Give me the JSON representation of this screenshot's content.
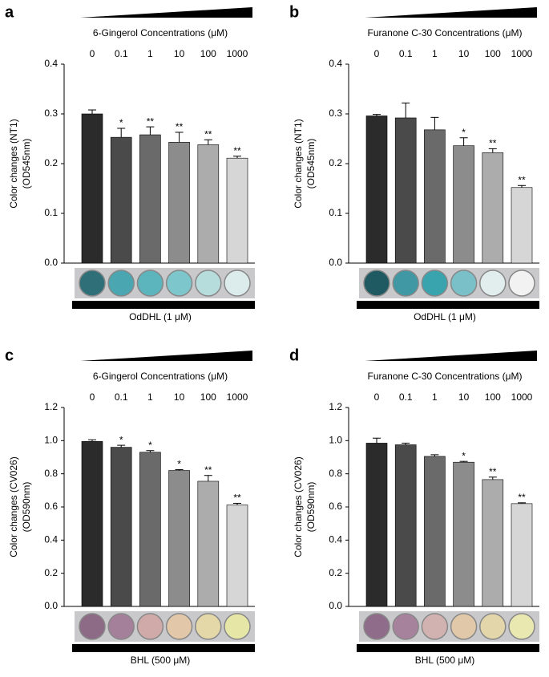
{
  "chart_data": [
    {
      "type": "bar",
      "panel_label": "a",
      "title": "6-Gingerol Concentrations (μM)",
      "ylabel": [
        "Color changes (NT1)",
        "(OD545nm)"
      ],
      "categories": [
        "0",
        "0.1",
        "1",
        "10",
        "100",
        "1000"
      ],
      "values": [
        0.3,
        0.253,
        0.258,
        0.243,
        0.238,
        0.211
      ],
      "errors": [
        0.008,
        0.018,
        0.016,
        0.02,
        0.01,
        0.004
      ],
      "significance": [
        null,
        "*",
        "**",
        "**",
        "**",
        "**"
      ],
      "colors": [
        "#2b2b2b",
        "#4a4a4a",
        "#6a6a6a",
        "#8c8c8c",
        "#acacac",
        "#d6d6d6"
      ],
      "ylim": [
        0,
        0.4
      ],
      "yticks": [
        {
          "value": 0,
          "label": "0.0"
        },
        0.1,
        0.2,
        0.3,
        0.4
      ],
      "treatment": "OdDHL (1 μM)"
    },
    {
      "type": "bar",
      "panel_label": "b",
      "title": "Furanone C-30 Concentrations (μM)",
      "ylabel": [
        "Color changes (NT1)",
        "(OD545nm)"
      ],
      "categories": [
        "0",
        "0.1",
        "1",
        "10",
        "100",
        "1000"
      ],
      "values": [
        0.296,
        0.292,
        0.268,
        0.236,
        0.222,
        0.152
      ],
      "errors": [
        0.003,
        0.03,
        0.025,
        0.016,
        0.008,
        0.004
      ],
      "significance": [
        null,
        null,
        null,
        "*",
        "**",
        "**"
      ],
      "colors": [
        "#2b2b2b",
        "#4a4a4a",
        "#6a6a6a",
        "#8c8c8c",
        "#acacac",
        "#d6d6d6"
      ],
      "ylim": [
        0,
        0.4
      ],
      "yticks": [
        {
          "value": 0,
          "label": "0.0"
        },
        0.1,
        0.2,
        0.3,
        0.4
      ],
      "treatment": "OdDHL (1 μM)"
    },
    {
      "type": "bar",
      "panel_label": "c",
      "title": "6-Gingerol Concentrations (μM)",
      "ylabel": [
        "Color changes (CV026)",
        "(OD590nm)"
      ],
      "categories": [
        "0",
        "0.1",
        "1",
        "10",
        "100",
        "1000"
      ],
      "values": [
        0.995,
        0.96,
        0.93,
        0.82,
        0.755,
        0.612
      ],
      "errors": [
        0.01,
        0.012,
        0.01,
        0.005,
        0.035,
        0.01
      ],
      "significance": [
        null,
        "*",
        "*",
        "*",
        "**",
        "**"
      ],
      "colors": [
        "#2b2b2b",
        "#4a4a4a",
        "#6a6a6a",
        "#8c8c8c",
        "#acacac",
        "#d6d6d6"
      ],
      "ylim": [
        0,
        1.2
      ],
      "yticks": [
        {
          "value": 0,
          "label": "0.0"
        },
        0.2,
        0.4,
        0.6,
        0.8,
        {
          "value": 1,
          "label": "1.0"
        },
        1.2
      ],
      "treatment": "BHL (500 μM)"
    },
    {
      "type": "bar",
      "panel_label": "d",
      "title": "Furanone C-30 Concentrations (μM)",
      "ylabel": [
        "Color changes (CV026)",
        "(OD590nm)"
      ],
      "categories": [
        "0",
        "0.1",
        "1",
        "10",
        "100",
        "1000"
      ],
      "values": [
        0.985,
        0.975,
        0.905,
        0.87,
        0.765,
        0.62
      ],
      "errors": [
        0.03,
        0.01,
        0.01,
        0.005,
        0.015,
        0.005
      ],
      "significance": [
        null,
        null,
        null,
        "*",
        "**",
        "**"
      ],
      "colors": [
        "#2b2b2b",
        "#4a4a4a",
        "#6a6a6a",
        "#8c8c8c",
        "#acacac",
        "#d6d6d6"
      ],
      "ylim": [
        0,
        1.2
      ],
      "yticks": [
        {
          "value": 0,
          "label": "0.0"
        },
        0.2,
        0.4,
        0.6,
        0.8,
        {
          "value": 1,
          "label": "1.0"
        },
        1.2
      ],
      "treatment": "BHL (500 μM)"
    }
  ]
}
